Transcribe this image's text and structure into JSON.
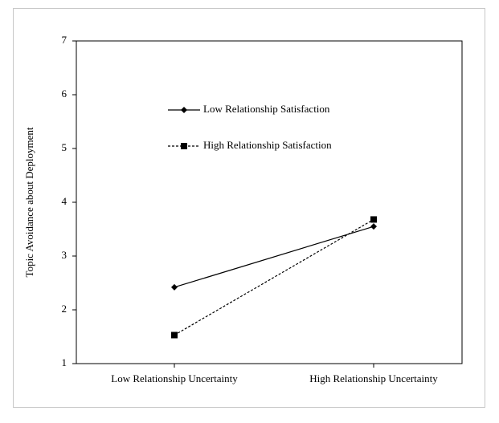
{
  "chart_data": {
    "type": "line",
    "title": "",
    "xlabel": "",
    "ylabel": "Topic Avoidance about Deployment",
    "ylim": [
      1,
      7
    ],
    "yticks": [
      "1",
      "2",
      "3",
      "4",
      "5",
      "6",
      "7"
    ],
    "categories": [
      "Low Relationship Uncertainty",
      "High Relationship Uncertainty"
    ],
    "grid": false,
    "legend_placement": "top-center",
    "series": [
      {
        "name": "Low Relationship Satisfaction",
        "values": [
          2.42,
          3.55
        ],
        "marker": "diamond",
        "line_style": "solid",
        "color": "#000000"
      },
      {
        "name": "High Relationship Satisfaction",
        "values": [
          1.53,
          3.68
        ],
        "marker": "square",
        "line_style": "dashed",
        "color": "#000000"
      }
    ]
  }
}
